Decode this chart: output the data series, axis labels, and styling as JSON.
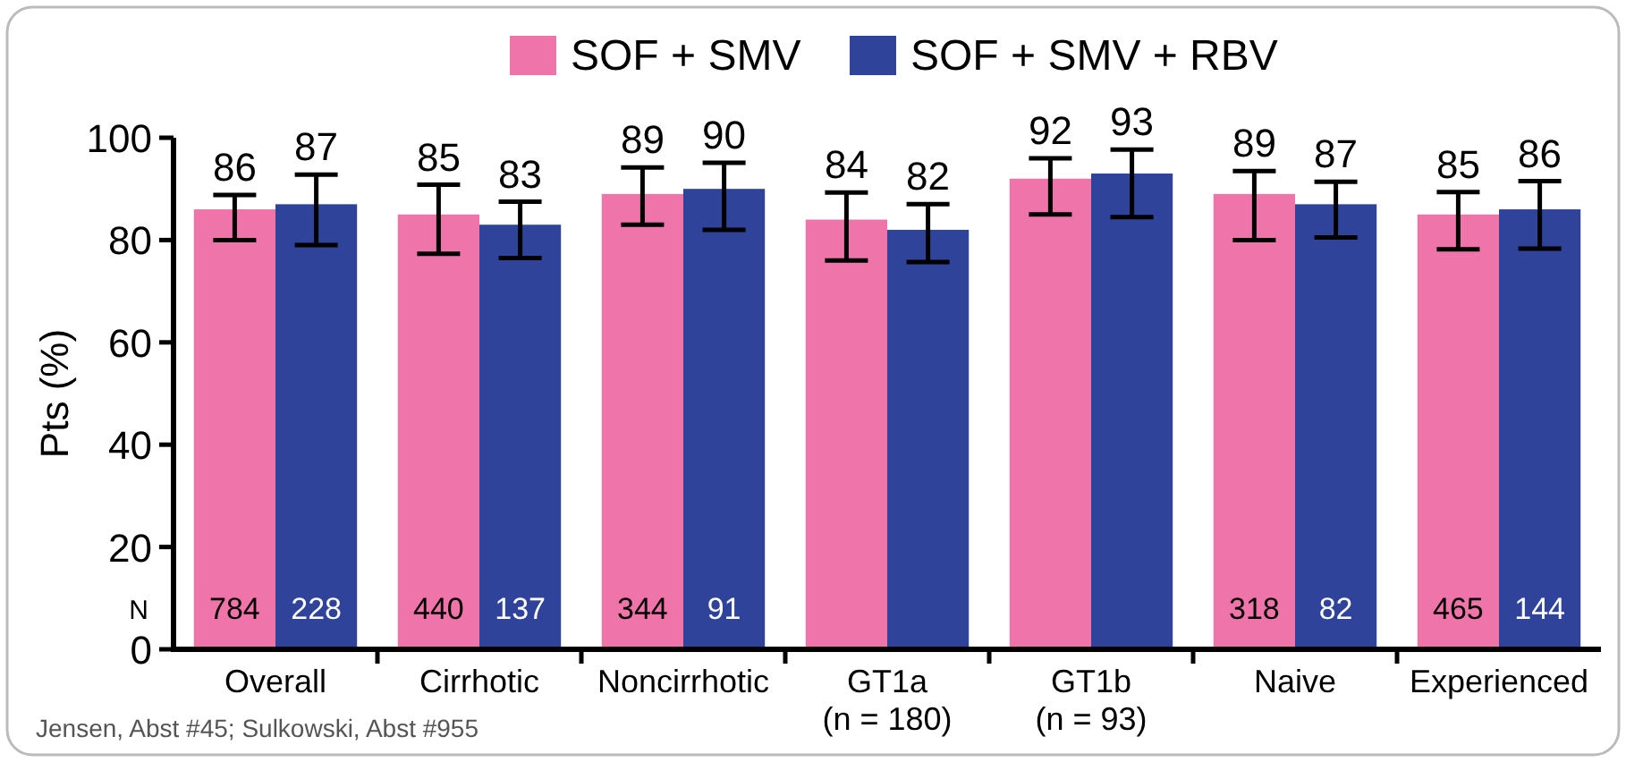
{
  "chart_data": {
    "type": "bar",
    "ylabel": "Pts (%)",
    "categories": [
      "Overall",
      "Cirrhotic",
      "Noncirrhotic",
      "GT1a\n(n = 180)",
      "GT1b\n(n = 93)",
      "Naive",
      "Experienced"
    ],
    "series": [
      {
        "name": "SOF + SMV",
        "color": "#ee74aa",
        "values": [
          86,
          85,
          89,
          84,
          92,
          89,
          85
        ],
        "errors": [
          [
            80,
            88.8
          ],
          [
            77.3,
            90.8
          ],
          [
            83,
            94.2
          ],
          [
            76,
            89.3
          ],
          [
            85,
            96
          ],
          [
            80,
            93.5
          ],
          [
            78.2,
            89.4
          ]
        ]
      },
      {
        "name": "SOF + SMV + RBV",
        "color": "#2e4399",
        "values": [
          87,
          83,
          90,
          82,
          93,
          87,
          86
        ],
        "errors": [
          [
            79,
            92.8
          ],
          [
            76.5,
            87.5
          ],
          [
            82,
            95.1
          ],
          [
            75.7,
            87
          ],
          [
            84.5,
            97.7
          ],
          [
            80.5,
            91.4
          ],
          [
            78.3,
            91.5
          ]
        ]
      }
    ],
    "ylim": [
      0,
      100
    ],
    "yticks": [
      0,
      20,
      40,
      60,
      80,
      100
    ],
    "data_labels": true,
    "legend": "top",
    "grid": false,
    "annotations": [
      "N",
      {
        "text": "784",
        "x": "Overall",
        "y": 8
      },
      {
        "text": "228",
        "x": "Overall",
        "y": 8
      },
      {
        "text": "440",
        "x": "Cirrhotic",
        "y": 8
      },
      {
        "text": "137",
        "x": "Cirrhotic",
        "y": 8
      },
      {
        "text": "344",
        "x": "Noncirrhotic",
        "y": 8
      },
      {
        "text": "91",
        "x": "Noncirrhotic",
        "y": 8
      },
      {
        "text": "318",
        "x": "Naive",
        "y": 8
      },
      {
        "text": "82",
        "x": "Naive",
        "y": 8
      },
      {
        "text": "465",
        "x": "Experienced",
        "y": 8
      },
      {
        "text": "144",
        "x": "Experienced",
        "y": 8
      },
      "Jensen, Abst #45; Sulkowski, Abst #955"
    ]
  }
}
